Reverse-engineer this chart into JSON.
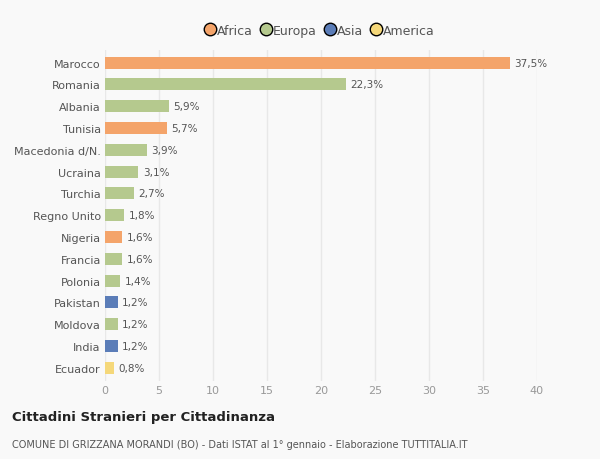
{
  "countries": [
    "Marocco",
    "Romania",
    "Albania",
    "Tunisia",
    "Macedonia d/N.",
    "Ucraina",
    "Turchia",
    "Regno Unito",
    "Nigeria",
    "Francia",
    "Polonia",
    "Pakistan",
    "Moldova",
    "India",
    "Ecuador"
  ],
  "values": [
    37.5,
    22.3,
    5.9,
    5.7,
    3.9,
    3.1,
    2.7,
    1.8,
    1.6,
    1.6,
    1.4,
    1.2,
    1.2,
    1.2,
    0.8
  ],
  "labels": [
    "37,5%",
    "22,3%",
    "5,9%",
    "5,7%",
    "3,9%",
    "3,1%",
    "2,7%",
    "1,8%",
    "1,6%",
    "1,6%",
    "1,4%",
    "1,2%",
    "1,2%",
    "1,2%",
    "0,8%"
  ],
  "continents": [
    "Africa",
    "Europa",
    "Europa",
    "Africa",
    "Europa",
    "Europa",
    "Europa",
    "Europa",
    "Africa",
    "Europa",
    "Europa",
    "Asia",
    "Europa",
    "Asia",
    "America"
  ],
  "colors": {
    "Africa": "#F4A46A",
    "Europa": "#B5C98E",
    "Asia": "#5B7DB8",
    "America": "#F5D87A"
  },
  "legend_order": [
    "Africa",
    "Europa",
    "Asia",
    "America"
  ],
  "legend_colors": {
    "Africa": "#F4A46A",
    "Europa": "#B5C98E",
    "Asia": "#5B7DB8",
    "America": "#F5D87A"
  },
  "title": "Cittadini Stranieri per Cittadinanza",
  "subtitle": "COMUNE DI GRIZZANA MORANDI (BO) - Dati ISTAT al 1° gennaio - Elaborazione TUTTITALIA.IT",
  "xlim": [
    0,
    40
  ],
  "xticks": [
    0,
    5,
    10,
    15,
    20,
    25,
    30,
    35,
    40
  ],
  "bg_color": "#f9f9f9",
  "grid_color": "#e8e8e8",
  "bar_height": 0.55
}
